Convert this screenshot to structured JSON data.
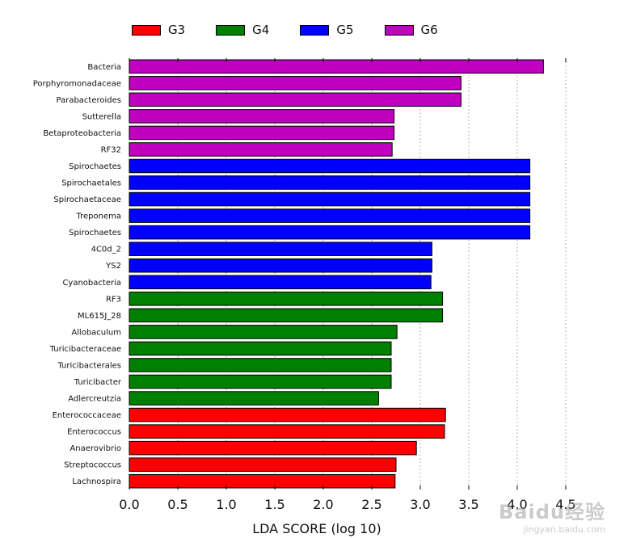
{
  "legend": [
    {
      "label": "G3",
      "color": "#ff0000"
    },
    {
      "label": "G4",
      "color": "#008000"
    },
    {
      "label": "G5",
      "color": "#0000ff"
    },
    {
      "label": "G6",
      "color": "#c000c0"
    }
  ],
  "watermark": {
    "logo": "Baidu经验",
    "url": "jingyan.baidu.com"
  },
  "chart_data": {
    "type": "bar",
    "orientation": "horizontal",
    "xlabel": "LDA SCORE (log 10)",
    "ylabel": "",
    "xlim": [
      0.0,
      4.7
    ],
    "xticks": [
      "0.0",
      "0.5",
      "1.0",
      "1.5",
      "2.0",
      "2.5",
      "3.0",
      "3.5",
      "4.0",
      "4.5"
    ],
    "grid": "vertical dotted",
    "legend_position": "top",
    "series": [
      {
        "name": "G6",
        "color": "#c000c0",
        "categories": [
          "Bacteria",
          "Porphyromonadaceae",
          "Parabacteroides",
          "Sutterella",
          "Betaproteobacteria",
          "RF32"
        ],
        "values": [
          4.27,
          3.42,
          3.42,
          2.73,
          2.73,
          2.71
        ]
      },
      {
        "name": "G5",
        "color": "#0000ff",
        "categories": [
          "Spirochaetes",
          "Spirochaetales",
          "Spirochaetaceae",
          "Treponema",
          "Spirochaetes",
          "4C0d_2",
          "YS2",
          "Cyanobacteria"
        ],
        "values": [
          4.13,
          4.13,
          4.13,
          4.13,
          4.13,
          3.12,
          3.12,
          3.11
        ]
      },
      {
        "name": "G4",
        "color": "#008000",
        "categories": [
          "RF3",
          "ML615J_28",
          "Allobaculum",
          "Turicibacteraceae",
          "Turicibacterales",
          "Turicibacter",
          "Adlercreutzia"
        ],
        "values": [
          3.23,
          3.23,
          2.76,
          2.7,
          2.7,
          2.7,
          2.57
        ]
      },
      {
        "name": "G3",
        "color": "#ff0000",
        "categories": [
          "Enterococcaceae",
          "Enterococcus",
          "Anaerovibrio",
          "Streptococcus",
          "Lachnospira"
        ],
        "values": [
          3.26,
          3.25,
          2.96,
          2.75,
          2.74
        ]
      }
    ]
  }
}
